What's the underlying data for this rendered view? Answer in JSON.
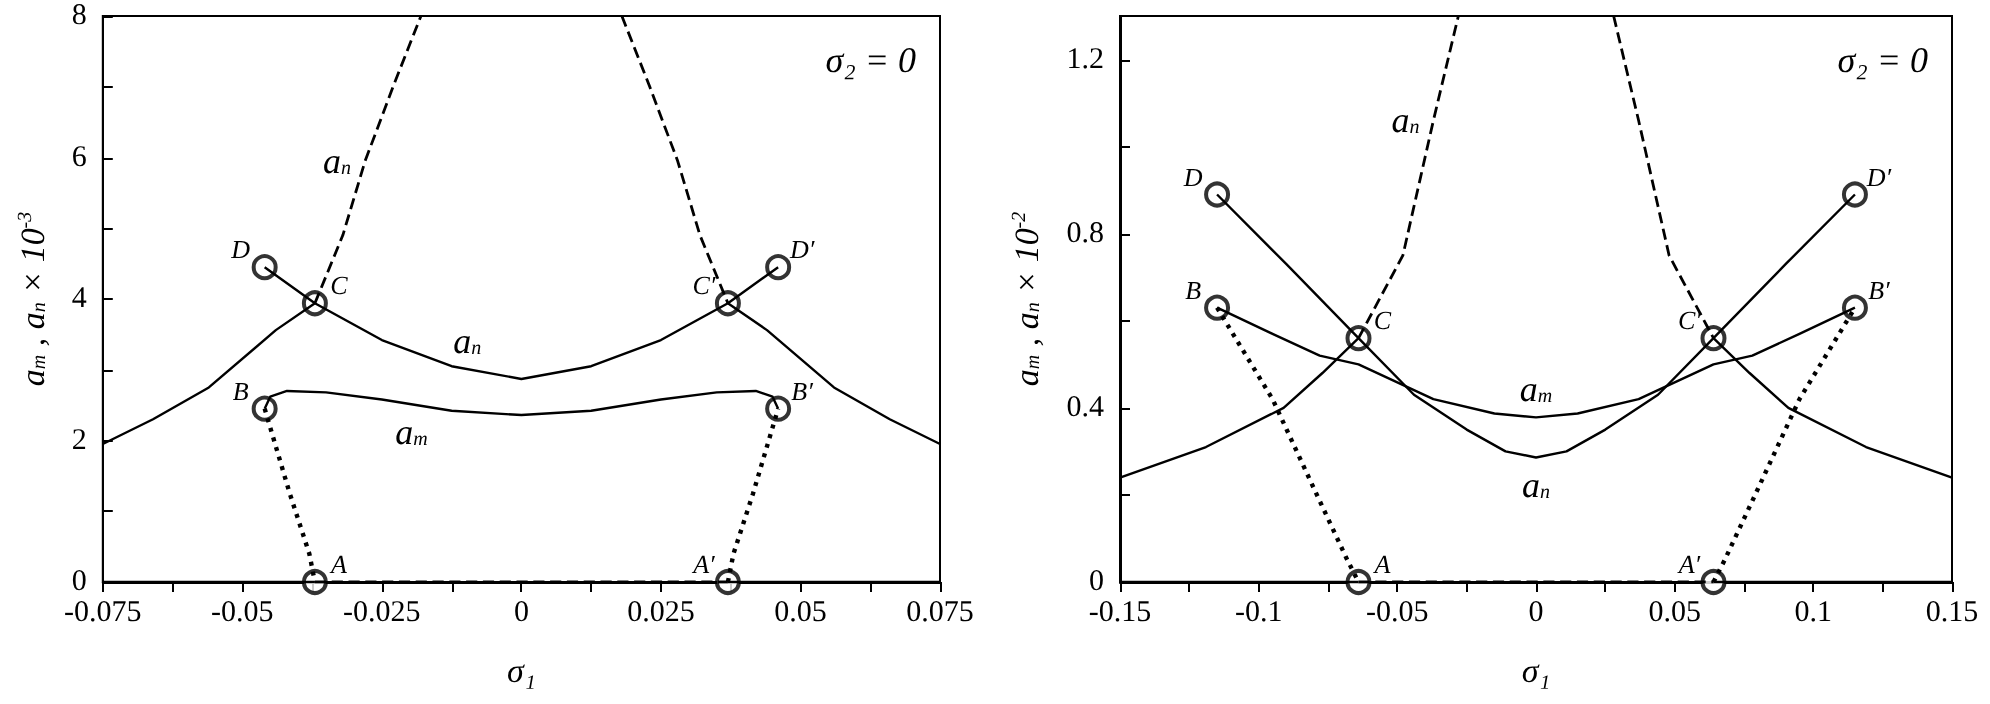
{
  "chart_data": [
    {
      "type": "line",
      "xlabel": "σ₁",
      "ylabel": "a$_{m}$ , a$_{n}$ × 10$^{-3}$",
      "xlim": [
        -0.075,
        0.075
      ],
      "ylim": [
        0,
        8
      ],
      "xticks": [
        -0.075,
        {
          "value": -0.0625,
          "label": null
        },
        -0.05,
        {
          "value": -0.0375,
          "label": null
        },
        -0.025,
        {
          "value": -0.0125,
          "label": null
        },
        0,
        {
          "value": 0.0125,
          "label": null
        },
        0.025,
        {
          "value": 0.0375,
          "label": null
        },
        0.05,
        {
          "value": 0.0625,
          "label": null
        },
        0.075
      ],
      "yticks": [
        0,
        {
          "value": 1,
          "label": null
        },
        2,
        {
          "value": 3,
          "label": null
        },
        4,
        {
          "value": 5,
          "label": null
        },
        6,
        {
          "value": 7,
          "label": null
        },
        8
      ],
      "series": [
        {
          "type": "line",
          "color": "#000000",
          "line_style": "solid",
          "x": [
            -0.075,
            -0.066,
            -0.056,
            -0.044,
            -0.037
          ],
          "values": [
            1.95,
            2.3,
            2.75,
            3.56,
            3.94
          ]
        },
        {
          "type": "line",
          "color": "#000000",
          "line_style": "solid",
          "x": [
            0.037,
            0.044,
            0.056,
            0.066,
            0.075
          ],
          "values": [
            3.94,
            3.56,
            2.75,
            2.3,
            1.95
          ]
        },
        {
          "type": "line",
          "color": "#000000",
          "line_style": "solid",
          "x": [
            -0.046,
            -0.037,
            -0.025,
            -0.0125,
            0,
            0.0125,
            0.025,
            0.037,
            0.046
          ],
          "values": [
            4.45,
            3.94,
            3.42,
            3.05,
            2.87,
            3.05,
            3.42,
            3.94,
            4.45
          ]
        },
        {
          "type": "line",
          "color": "#000000",
          "line_style": "dashed",
          "x": [
            -0.037,
            -0.032,
            -0.028,
            -0.023,
            -0.018
          ],
          "values": [
            3.94,
            4.9,
            5.95,
            7.0,
            8
          ]
        },
        {
          "type": "line",
          "color": "#000000",
          "line_style": "dashed",
          "x": [
            0.018,
            0.023,
            0.028,
            0.032,
            0.037
          ],
          "values": [
            8,
            7.0,
            5.95,
            4.9,
            3.94
          ]
        },
        {
          "type": "line",
          "color": "#000000",
          "line_style": "solid",
          "x": [
            -0.046,
            -0.045,
            -0.042,
            -0.035,
            -0.025,
            -0.0125,
            0,
            0.0125,
            0.025,
            0.035,
            0.042,
            0.045,
            0.046
          ],
          "values": [
            2.45,
            2.62,
            2.7,
            2.68,
            2.58,
            2.42,
            2.36,
            2.42,
            2.58,
            2.68,
            2.7,
            2.62,
            2.45
          ]
        },
        {
          "type": "line",
          "color": "#000000",
          "line_style": "dotted",
          "x": [
            -0.046,
            -0.0415,
            -0.038,
            -0.037
          ],
          "values": [
            2.45,
            1.25,
            0.4,
            0
          ]
        },
        {
          "type": "line",
          "color": "#000000",
          "line_style": "dotted",
          "x": [
            0.037,
            0.038,
            0.0415,
            0.046
          ],
          "values": [
            0,
            0.4,
            1.25,
            2.45
          ]
        },
        {
          "type": "line",
          "color": "#000000",
          "line_style": "solid",
          "x": [
            -0.075,
            -0.037
          ],
          "values": [
            0,
            0
          ]
        },
        {
          "type": "line",
          "color": "#000000",
          "line_style": "dashed",
          "x": [
            -0.037,
            0.037
          ],
          "values": [
            0,
            0
          ]
        },
        {
          "type": "line",
          "color": "#000000",
          "line_style": "solid",
          "x": [
            0.037,
            0.075
          ],
          "values": [
            0,
            0
          ]
        },
        {
          "type": "scatter",
          "color": "#000000",
          "marker": "circle",
          "x": [
            -0.046,
            -0.037,
            -0.046,
            -0.037,
            0.037,
            0.046,
            0.037,
            0.046
          ],
          "values": [
            4.45,
            3.94,
            2.45,
            0,
            0,
            2.45,
            3.94,
            4.45
          ]
        }
      ],
      "annotations": [
        "σ₂ = 0",
        {
          "text": "D",
          "x": -0.046,
          "y": 4.45
        },
        {
          "text": "C",
          "x": -0.037,
          "y": 3.94
        },
        {
          "text": "B",
          "x": -0.046,
          "y": 2.45
        },
        {
          "text": "A",
          "x": -0.037,
          "y": 0
        },
        {
          "text": "D′",
          "x": 0.046,
          "y": 4.45
        },
        {
          "text": "C′",
          "x": 0.037,
          "y": 3.94
        },
        {
          "text": "B′",
          "x": 0.046,
          "y": 2.45
        },
        {
          "text": "A′",
          "x": 0.037,
          "y": 0
        },
        {
          "text": "a$_{n}$",
          "x": -0.028,
          "y": 5.95
        },
        {
          "text": "a$_{n}$",
          "x": -0.0097,
          "y": 3.01
        },
        {
          "text": "a$_{m}$",
          "x": -0.0197,
          "y": 2.51
        }
      ]
    },
    {
      "type": "line",
      "xlabel": "σ₁",
      "ylabel": "a$_{m}$ , a$_{n}$ × 10$^{-2}$",
      "xlim": [
        -0.15,
        0.15
      ],
      "ylim": [
        0,
        1.3
      ],
      "xticks": [
        -0.15,
        {
          "value": -0.125,
          "label": null
        },
        -0.1,
        {
          "value": -0.075,
          "label": null
        },
        -0.05,
        {
          "value": -0.025,
          "label": null
        },
        0,
        {
          "value": 0.025,
          "label": null
        },
        0.05,
        {
          "value": 0.075,
          "label": null
        },
        0.1,
        {
          "value": 0.125,
          "label": null
        },
        0.15
      ],
      "yticks": [
        0,
        {
          "value": 0.2,
          "label": null
        },
        0.4,
        {
          "value": 0.6,
          "label": null
        },
        0.8,
        {
          "value": 1.0,
          "label": null
        },
        1.2
      ],
      "series": [
        {
          "type": "line",
          "color": "#000000",
          "line_style": "solid",
          "x": [
            -0.15,
            -0.119,
            -0.091,
            -0.077,
            -0.064
          ],
          "values": [
            0.24,
            0.31,
            0.4,
            0.48,
            0.56
          ]
        },
        {
          "type": "line",
          "color": "#000000",
          "line_style": "solid",
          "x": [
            0.064,
            0.077,
            0.091,
            0.119,
            0.15
          ],
          "values": [
            0.56,
            0.48,
            0.4,
            0.31,
            0.24
          ]
        },
        {
          "type": "line",
          "color": "#000000",
          "line_style": "solid",
          "x": [
            -0.115,
            -0.09,
            -0.064,
            -0.044,
            -0.025,
            -0.011,
            0,
            0.011,
            0.025,
            0.044,
            0.064,
            0.09,
            0.115
          ],
          "values": [
            0.89,
            0.73,
            0.56,
            0.43,
            0.35,
            0.3,
            0.286,
            0.3,
            0.35,
            0.43,
            0.56,
            0.73,
            0.89
          ]
        },
        {
          "type": "line",
          "color": "#000000",
          "line_style": "dashed",
          "x": [
            -0.064,
            -0.048,
            -0.037,
            -0.028
          ],
          "values": [
            0.56,
            0.75,
            1.06,
            1.3
          ]
        },
        {
          "type": "line",
          "color": "#000000",
          "line_style": "dashed",
          "x": [
            0.028,
            0.037,
            0.048,
            0.064
          ],
          "values": [
            1.3,
            1.06,
            0.75,
            0.56
          ]
        },
        {
          "type": "line",
          "color": "#000000",
          "line_style": "solid",
          "x": [
            -0.115,
            -0.095,
            -0.078,
            -0.064,
            -0.037,
            -0.015,
            0,
            0.015,
            0.037,
            0.064,
            0.078,
            0.095,
            0.115
          ],
          "values": [
            0.63,
            0.57,
            0.52,
            0.5,
            0.42,
            0.387,
            0.378,
            0.387,
            0.42,
            0.5,
            0.52,
            0.57,
            0.63
          ]
        },
        {
          "type": "line",
          "color": "#000000",
          "line_style": "dotted",
          "x": [
            -0.115,
            -0.095,
            -0.079,
            -0.068,
            -0.064
          ],
          "values": [
            0.63,
            0.42,
            0.2,
            0.05,
            0
          ]
        },
        {
          "type": "line",
          "color": "#000000",
          "line_style": "dotted",
          "x": [
            0.064,
            0.068,
            0.079,
            0.095,
            0.115
          ],
          "values": [
            0,
            0.05,
            0.2,
            0.42,
            0.63
          ]
        },
        {
          "type": "line",
          "color": "#000000",
          "line_style": "solid",
          "x": [
            -0.15,
            -0.064
          ],
          "values": [
            0,
            0
          ]
        },
        {
          "type": "line",
          "color": "#000000",
          "line_style": "dashed",
          "x": [
            -0.064,
            0.064
          ],
          "values": [
            0,
            0
          ]
        },
        {
          "type": "line",
          "color": "#000000",
          "line_style": "solid",
          "x": [
            0.064,
            0.15
          ],
          "values": [
            0,
            0
          ]
        },
        {
          "type": "scatter",
          "color": "#000000",
          "marker": "circle",
          "x": [
            -0.115,
            -0.064,
            -0.115,
            -0.064,
            0.064,
            0.115,
            0.064,
            0.115
          ],
          "values": [
            0.89,
            0.56,
            0.63,
            0,
            0,
            0.63,
            0.56,
            0.89
          ]
        }
      ],
      "annotations": [
        "σ₂ = 0",
        {
          "text": "D",
          "x": -0.115,
          "y": 0.89
        },
        {
          "text": "C",
          "x": -0.064,
          "y": 0.56
        },
        {
          "text": "B",
          "x": -0.115,
          "y": 0.63
        },
        {
          "text": "A",
          "x": -0.064,
          "y": 0
        },
        {
          "text": "D′",
          "x": 0.115,
          "y": 0.89
        },
        {
          "text": "C′",
          "x": 0.064,
          "y": 0.56
        },
        {
          "text": "B′",
          "x": 0.115,
          "y": 0.63
        },
        {
          "text": "A′",
          "x": 0.064,
          "y": 0
        },
        {
          "text": "a$_{n}$",
          "x": -0.037,
          "y": 1.06
        },
        {
          "text": "a$_{m}$",
          "x": 0,
          "y": 0.378
        },
        {
          "text": "a$_{n}$",
          "x": 0,
          "y": 0.286
        }
      ]
    }
  ]
}
